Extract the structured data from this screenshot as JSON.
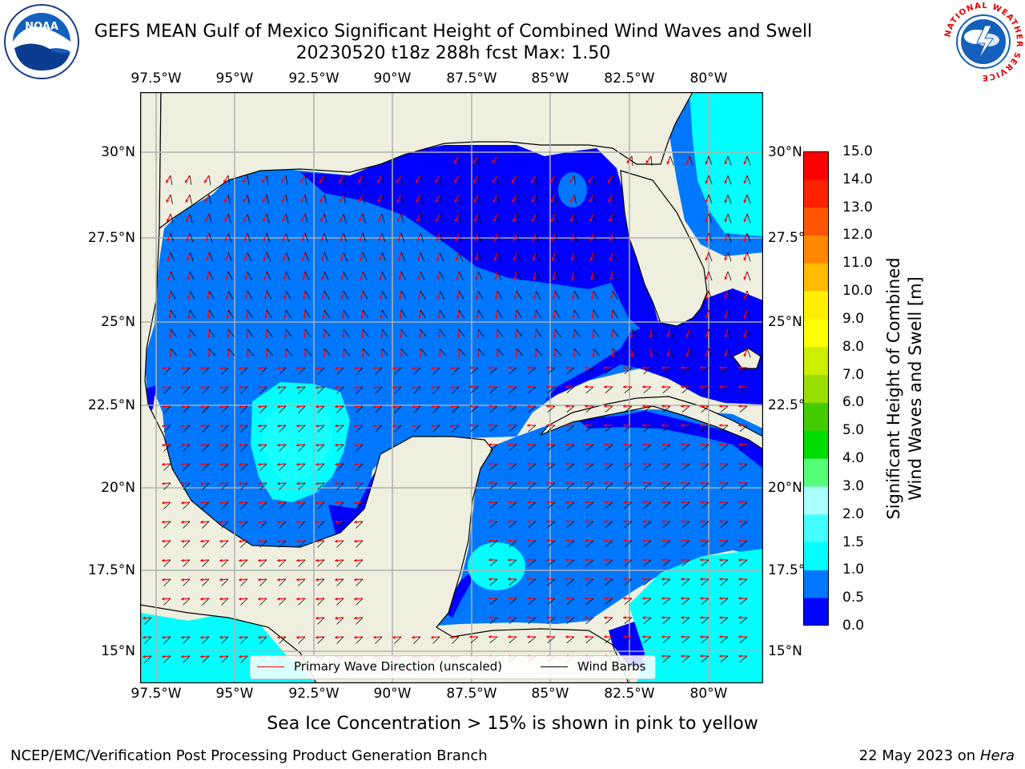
{
  "title": {
    "line1": "GEFS MEAN Gulf of Mexico Significant Height of Combined Wind Waves and Swell",
    "line2": "20230520 t18z 288h fcst   Max: 1.50"
  },
  "map": {
    "lon_ticks": [
      "97.5°W",
      "95°W",
      "92.5°W",
      "90°W",
      "87.5°W",
      "85°W",
      "82.5°W",
      "80°W"
    ],
    "lat_ticks": [
      "30°N",
      "27.5°N",
      "25°N",
      "22.5°N",
      "20°N",
      "17.5°N",
      "15°N"
    ],
    "land_color": "#efefdf",
    "grid_color": "#b0b0b0"
  },
  "colorbar": {
    "label_line1": "Significant Height of Combined",
    "label_line2": "Wind Waves and Swell [m]",
    "ticks": [
      "0.0",
      "0.5",
      "1.0",
      "1.5",
      "2.0",
      "3.0",
      "4.0",
      "5.0",
      "6.0",
      "7.0",
      "8.0",
      "9.0",
      "10.0",
      "11.0",
      "12.0",
      "13.0",
      "14.0",
      "15.0"
    ],
    "colors": [
      "#0000ff",
      "#0077ff",
      "#00ffff",
      "#44ffff",
      "#aaffff",
      "#55ff77",
      "#00dd00",
      "#44cc00",
      "#99dd00",
      "#ccee00",
      "#ffff00",
      "#ffee00",
      "#ffbb00",
      "#ff8800",
      "#ff5500",
      "#ff2200",
      "#ff0000"
    ]
  },
  "legend": {
    "wave_label": "Primary Wave Direction (unscaled)",
    "wave_color": "#ff0000",
    "barb_label": "Wind Barbs",
    "barb_color": "#000000"
  },
  "sea_ice_note": "Sea Ice Concentration > 15% is shown in pink to yellow",
  "credit": "NCEP/EMC/Verification Post Processing Product Generation Branch",
  "date_stamp": "22 May 2023 on",
  "host": "Hera",
  "logos": {
    "noaa_text": "NOAA",
    "nws_text": "NATIONAL WEATHER SERVICE"
  }
}
